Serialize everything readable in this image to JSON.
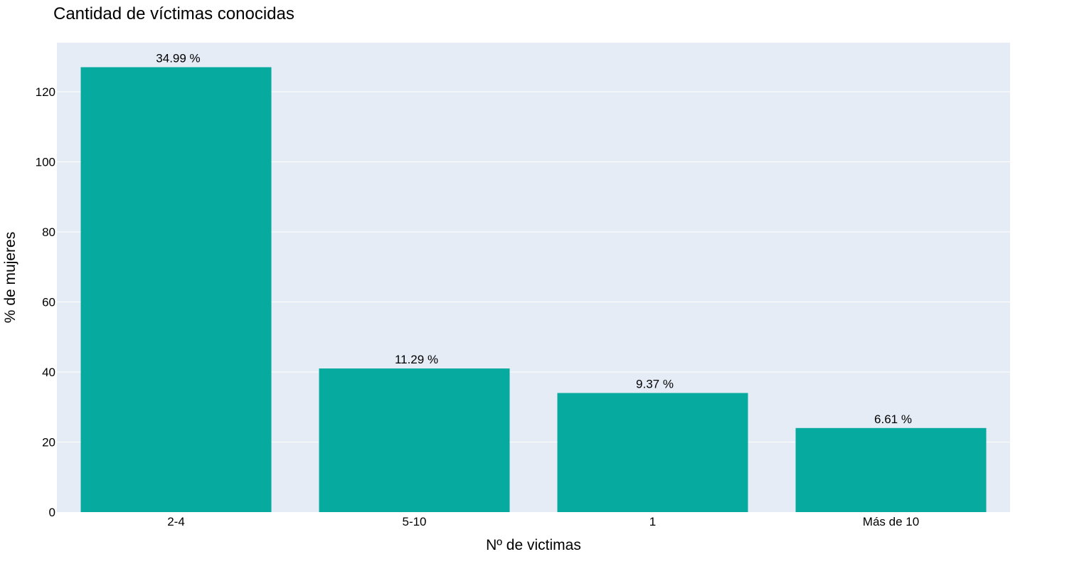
{
  "chart_data": {
    "type": "bar",
    "title": "Cantidad de víctimas conocidas",
    "xlabel": "Nº de victimas",
    "ylabel": "% de mujeres",
    "categories": [
      "2-4",
      "5-10",
      "1",
      "Más de 10"
    ],
    "values": [
      127,
      41,
      34,
      24
    ],
    "data_labels": [
      "34.99 %",
      "11.29 %",
      "9.37 %",
      "6.61 %"
    ],
    "ylim": [
      0,
      134
    ],
    "yticks": [
      0,
      20,
      40,
      60,
      80,
      100,
      120
    ],
    "grid": true,
    "bar_color": "#07AA9E",
    "plot_background": "#E5ECF6",
    "gridline_color": "#FFFFFF"
  }
}
